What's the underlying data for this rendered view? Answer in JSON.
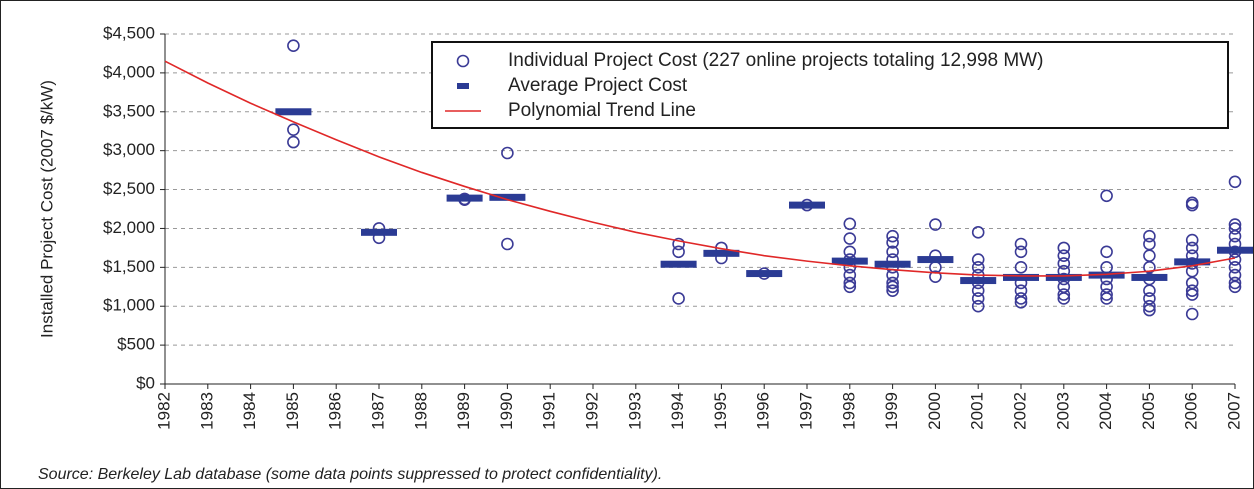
{
  "chart_data": {
    "type": "scatter",
    "y_label": "Installed Project Cost (2007 $/kW)",
    "note": "Source: Berkeley Lab database (some data points suppressed to protect confidentiality).",
    "xlim": [
      1982,
      2007
    ],
    "xticks": [
      1982,
      1983,
      1984,
      1985,
      1986,
      1987,
      1988,
      1989,
      1990,
      1991,
      1992,
      1993,
      1994,
      1995,
      1996,
      1997,
      1998,
      1999,
      2000,
      2001,
      2002,
      2003,
      2004,
      2005,
      2006,
      2007
    ],
    "ylim": [
      0,
      4500
    ],
    "yticks": [
      {
        "value": 0,
        "label": "$0"
      },
      {
        "value": 500,
        "label": "$500"
      },
      {
        "value": 1000,
        "label": "$1,000"
      },
      {
        "value": 1500,
        "label": "$1,500"
      },
      {
        "value": 2000,
        "label": "$2,000"
      },
      {
        "value": 2500,
        "label": "$2,500"
      },
      {
        "value": 3000,
        "label": "$3,000"
      },
      {
        "value": 3500,
        "label": "$3,500"
      },
      {
        "value": 4000,
        "label": "$4,000"
      },
      {
        "value": 4500,
        "label": "$4,500"
      }
    ],
    "grid": true,
    "legend": "top-right",
    "series": [
      {
        "name": "Individual Project Cost (227 online projects totaling 12,998 MW)",
        "type": "scatter",
        "color": "#3b3b96",
        "x": [
          1985,
          1985,
          1985,
          1987,
          1987,
          1989,
          1989,
          1990,
          1990,
          1994,
          1994,
          1994,
          1995,
          1995,
          1996,
          1997,
          1998,
          1998,
          1998,
          1998,
          1998,
          1998,
          1998,
          1998,
          1999,
          1999,
          1999,
          1999,
          1999,
          1999,
          1999,
          1999,
          1999,
          2000,
          2000,
          2000,
          2000,
          2001,
          2001,
          2001,
          2001,
          2001,
          2001,
          2001,
          2001,
          2002,
          2002,
          2002,
          2002,
          2002,
          2002,
          2002,
          2003,
          2003,
          2003,
          2003,
          2003,
          2003,
          2003,
          2003,
          2004,
          2004,
          2004,
          2004,
          2004,
          2004,
          2004,
          2005,
          2005,
          2005,
          2005,
          2005,
          2005,
          2005,
          2005,
          2005,
          2006,
          2006,
          2006,
          2006,
          2006,
          2006,
          2006,
          2006,
          2006,
          2006,
          2006,
          2007,
          2007,
          2007,
          2007,
          2007,
          2007,
          2007,
          2007,
          2007,
          2007,
          2007
        ],
        "values": [
          4350,
          3270,
          3110,
          2000,
          1880,
          2380,
          2370,
          2970,
          1800,
          1800,
          1700,
          1100,
          1750,
          1620,
          1420,
          2300,
          2060,
          1870,
          1700,
          1600,
          1500,
          1400,
          1300,
          1250,
          1900,
          1820,
          1700,
          1600,
          1500,
          1400,
          1300,
          1250,
          1200,
          2050,
          1650,
          1500,
          1380,
          1950,
          1600,
          1500,
          1400,
          1300,
          1200,
          1100,
          1000,
          1800,
          1700,
          1500,
          1300,
          1200,
          1100,
          1050,
          1750,
          1650,
          1550,
          1450,
          1350,
          1250,
          1150,
          1100,
          2420,
          1700,
          1500,
          1350,
          1250,
          1150,
          1100,
          1900,
          1800,
          1650,
          1500,
          1350,
          1200,
          1100,
          1000,
          950,
          2330,
          2300,
          1850,
          1750,
          1650,
          1550,
          1450,
          1300,
          1200,
          1150,
          900,
          2600,
          2050,
          2000,
          1900,
          1800,
          1700,
          1600,
          1500,
          1400,
          1300,
          1250
        ]
      },
      {
        "name": "Average Project Cost",
        "type": "average",
        "color": "#2b3b94",
        "x": [
          1985,
          1987,
          1989,
          1990,
          1994,
          1995,
          1996,
          1997,
          1998,
          1999,
          2000,
          2001,
          2002,
          2003,
          2004,
          2005,
          2006,
          2007
        ],
        "values": [
          3500,
          1950,
          2390,
          2400,
          1540,
          1680,
          1420,
          2300,
          1580,
          1540,
          1600,
          1330,
          1370,
          1370,
          1400,
          1370,
          1570,
          1720
        ]
      },
      {
        "name": "Polynomial Trend Line",
        "type": "line",
        "color": "#e02828",
        "x": [
          1982,
          1983,
          1984,
          1985,
          1986,
          1987,
          1988,
          1989,
          1990,
          1991,
          1992,
          1993,
          1994,
          1995,
          1996,
          1997,
          1998,
          1999,
          2000,
          2001,
          2002,
          2003,
          2004,
          2005,
          2006,
          2007
        ],
        "values": [
          4150,
          3870,
          3610,
          3370,
          3140,
          2920,
          2720,
          2540,
          2370,
          2220,
          2080,
          1950,
          1840,
          1740,
          1650,
          1580,
          1520,
          1470,
          1430,
          1400,
          1390,
          1390,
          1410,
          1450,
          1520,
          1620
        ]
      }
    ]
  }
}
